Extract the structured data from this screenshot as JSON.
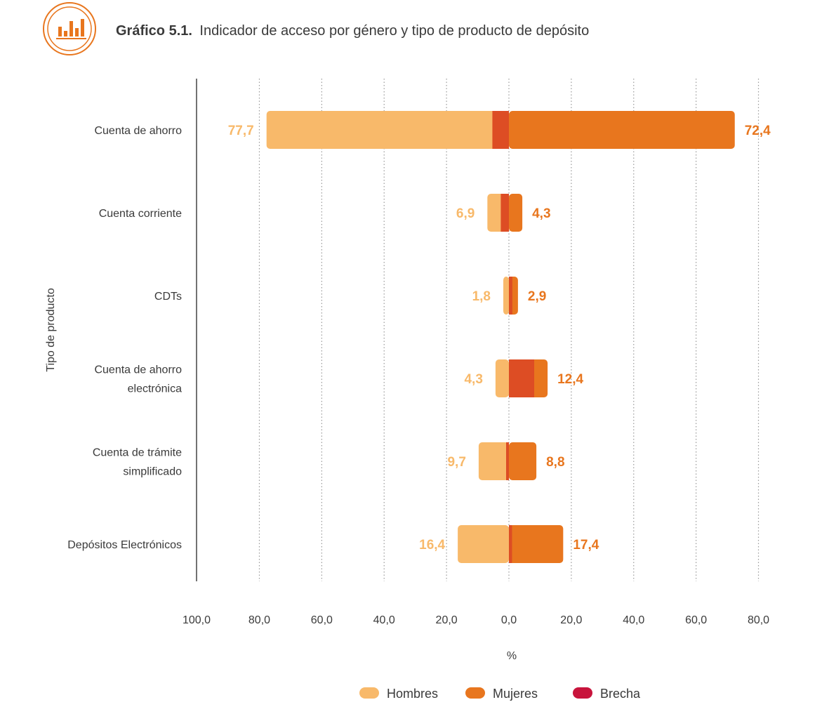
{
  "header": {
    "title_bold": "Gráfico 5.1.",
    "title_rest": "Indicador de acceso por género y tipo de producto de depósito",
    "icon": "bar-chart-icon"
  },
  "colors": {
    "hombres": "#f8b96a",
    "mujeres": "#e8761e",
    "brecha_overlay": "#dd4d24",
    "brecha_legend": "#c8143c",
    "axis": "#444444",
    "grid": "#9a9a9a",
    "icon_ring": "#e8761e"
  },
  "chart_data": {
    "type": "bar",
    "orientation": "horizontal-diverging",
    "title": "Indicador de acceso por género y tipo de producto de depósito",
    "ylabel": "Tipo de producto",
    "xlabel": "%",
    "xlim": [
      -100,
      80
    ],
    "xticks": [
      -100,
      -80,
      -60,
      -40,
      -20,
      0,
      20,
      40,
      60,
      80
    ],
    "xtick_labels": [
      "100,0",
      "80,0",
      "60,0",
      "40,0",
      "20,0",
      "0,0",
      "20,0",
      "40,0",
      "60,0",
      "80,0"
    ],
    "grid": "vertical-dotted",
    "legend_position": "bottom-center",
    "categories": [
      [
        "Cuenta de ahorro"
      ],
      [
        "Cuenta corriente"
      ],
      [
        "CDTs"
      ],
      [
        "Cuenta de ahorro",
        "electrónica"
      ],
      [
        "Cuenta de trámite",
        "simplificado"
      ],
      [
        "Depósitos Electrónicos"
      ]
    ],
    "series": [
      {
        "name": "Hombres",
        "values": [
          77.7,
          6.9,
          1.8,
          4.3,
          9.7,
          16.4
        ],
        "labels": [
          "77,7",
          "6,9",
          "1,8",
          "4,3",
          "9,7",
          "16,4"
        ],
        "side": "left"
      },
      {
        "name": "Mujeres",
        "values": [
          72.4,
          4.3,
          2.9,
          12.4,
          8.8,
          17.4
        ],
        "labels": [
          "72,4",
          "4,3",
          "2,9",
          "12,4",
          "8,8",
          "17,4"
        ],
        "side": "right"
      },
      {
        "name": "Brecha",
        "values": [
          5.3,
          2.6,
          1.1,
          8.1,
          0.9,
          1.0
        ]
      }
    ]
  },
  "legend": [
    {
      "name": "Hombres",
      "color": "#f8b96a"
    },
    {
      "name": "Mujeres",
      "color": "#e8761e"
    },
    {
      "name": "Brecha",
      "color": "#c8143c"
    }
  ]
}
